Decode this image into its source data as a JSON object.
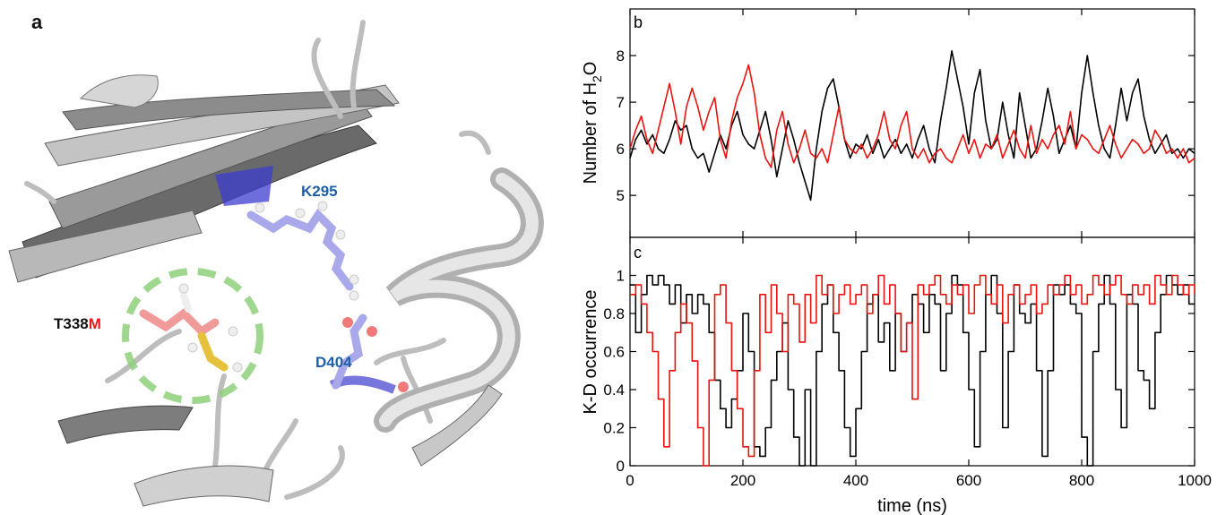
{
  "figure": {
    "panel_a": {
      "label": "a",
      "residues": {
        "k295": "K295",
        "d404": "D404",
        "t338m_prefix": "T338",
        "t338m_suffix": "M"
      },
      "colors": {
        "k295": "#1f5fa8",
        "d404": "#1f5fa8",
        "t338": "#111111",
        "mutant": "#e31a1c",
        "dashed_circle": "#8fd07a",
        "ribbon": "#d9d9d9"
      }
    }
  },
  "chart_data": [
    {
      "id": "b",
      "type": "line",
      "panel_label": "b",
      "ylabel_main": "Number of H",
      "ylabel_sub": "2",
      "ylabel_end": "O",
      "xlabel": "",
      "xlim": [
        0,
        1000
      ],
      "ylim": [
        4.1,
        9.0
      ],
      "yticks": [
        5,
        6,
        7,
        8
      ],
      "xticks": [
        0,
        200,
        400,
        600,
        800,
        1000
      ],
      "grid": false,
      "series": [
        {
          "color": "#000000",
          "x": [
            0,
            10,
            20,
            30,
            40,
            50,
            60,
            70,
            80,
            90,
            100,
            110,
            120,
            130,
            140,
            150,
            160,
            170,
            180,
            190,
            200,
            210,
            220,
            230,
            240,
            250,
            260,
            270,
            280,
            290,
            300,
            310,
            320,
            330,
            340,
            350,
            360,
            370,
            380,
            390,
            400,
            410,
            420,
            430,
            440,
            450,
            460,
            470,
            480,
            490,
            500,
            510,
            520,
            530,
            540,
            550,
            560,
            570,
            580,
            590,
            600,
            610,
            620,
            630,
            640,
            650,
            660,
            670,
            680,
            690,
            700,
            710,
            720,
            730,
            740,
            750,
            760,
            770,
            780,
            790,
            800,
            810,
            820,
            830,
            840,
            850,
            860,
            870,
            880,
            890,
            900,
            910,
            920,
            930,
            940,
            950,
            960,
            970,
            980,
            990,
            1000
          ],
          "y": [
            5.8,
            6.2,
            6.4,
            6.1,
            6.3,
            6.0,
            5.9,
            6.2,
            6.6,
            6.4,
            6.5,
            6.0,
            5.8,
            5.9,
            5.5,
            5.9,
            6.3,
            6.0,
            6.5,
            6.8,
            6.3,
            6.1,
            6.0,
            6.4,
            6.8,
            6.2,
            5.4,
            6.0,
            6.6,
            6.2,
            5.7,
            5.3,
            4.9,
            6.0,
            6.8,
            7.3,
            7.5,
            6.9,
            6.2,
            5.8,
            6.1,
            6.0,
            6.3,
            5.9,
            6.2,
            5.8,
            6.0,
            6.2,
            5.9,
            6.1,
            5.8,
            6.2,
            6.5,
            6.0,
            5.7,
            6.6,
            7.3,
            8.1,
            7.5,
            6.9,
            6.1,
            7.2,
            7.7,
            6.6,
            6.0,
            6.2,
            7.0,
            6.3,
            5.8,
            7.2,
            6.5,
            5.8,
            6.0,
            6.6,
            7.3,
            6.7,
            5.9,
            6.2,
            6.5,
            6.0,
            7.2,
            8.0,
            7.2,
            6.5,
            6.0,
            5.8,
            6.5,
            7.3,
            6.6,
            7.2,
            7.5,
            6.7,
            6.2,
            5.9,
            6.1,
            6.3,
            5.9,
            6.0,
            5.8,
            6.0,
            5.9
          ]
        },
        {
          "color": "#e8130f",
          "x": [
            0,
            10,
            20,
            30,
            40,
            50,
            60,
            70,
            80,
            90,
            100,
            110,
            120,
            130,
            140,
            150,
            160,
            170,
            180,
            190,
            200,
            210,
            220,
            230,
            240,
            250,
            260,
            270,
            280,
            290,
            300,
            310,
            320,
            330,
            340,
            350,
            360,
            370,
            380,
            390,
            400,
            410,
            420,
            430,
            440,
            450,
            460,
            470,
            480,
            490,
            500,
            510,
            520,
            530,
            540,
            550,
            560,
            570,
            580,
            590,
            600,
            610,
            620,
            630,
            640,
            650,
            660,
            670,
            680,
            690,
            700,
            710,
            720,
            730,
            740,
            750,
            760,
            770,
            780,
            790,
            800,
            810,
            820,
            830,
            840,
            850,
            860,
            870,
            880,
            890,
            900,
            910,
            920,
            930,
            940,
            950,
            960,
            970,
            980,
            990,
            1000
          ],
          "y": [
            6.0,
            6.4,
            6.7,
            6.2,
            5.9,
            6.4,
            6.9,
            7.4,
            6.8,
            6.1,
            6.9,
            7.3,
            6.9,
            6.4,
            6.8,
            7.1,
            6.2,
            5.8,
            6.6,
            7.1,
            7.4,
            7.8,
            7.2,
            6.3,
            5.8,
            5.6,
            6.4,
            6.8,
            6.1,
            5.7,
            6.0,
            6.4,
            5.9,
            5.8,
            6.0,
            5.7,
            6.3,
            6.9,
            6.2,
            6.0,
            5.9,
            6.1,
            5.8,
            6.0,
            6.3,
            6.8,
            6.2,
            6.0,
            6.5,
            6.8,
            6.0,
            5.8,
            6.0,
            5.7,
            5.9,
            6.0,
            5.8,
            5.7,
            6.0,
            6.3,
            5.9,
            6.2,
            5.8,
            6.1,
            6.0,
            6.3,
            5.8,
            6.1,
            6.4,
            6.0,
            5.8,
            6.5,
            5.9,
            6.2,
            6.0,
            6.3,
            6.5,
            6.1,
            6.8,
            6.0,
            6.3,
            6.2,
            6.0,
            5.9,
            6.2,
            6.5,
            6.1,
            5.8,
            6.0,
            6.2,
            6.1,
            5.9,
            6.0,
            6.4,
            6.2,
            5.9,
            6.0,
            5.8,
            6.0,
            5.7,
            5.8
          ]
        }
      ]
    },
    {
      "id": "c",
      "type": "line",
      "panel_label": "c",
      "ylabel": "K-D occurrence",
      "xlabel": "time (ns)",
      "xlim": [
        0,
        1000
      ],
      "ylim": [
        0,
        1.2
      ],
      "yticks": [
        0,
        0.2,
        0.4,
        0.6,
        0.8,
        1
      ],
      "xticks": [
        0,
        200,
        400,
        600,
        800,
        1000
      ],
      "grid": false,
      "series": [
        {
          "color": "#000000",
          "x": [
            0,
            10,
            20,
            30,
            40,
            50,
            60,
            70,
            80,
            90,
            100,
            110,
            120,
            130,
            140,
            150,
            160,
            170,
            180,
            190,
            200,
            210,
            220,
            230,
            240,
            250,
            260,
            270,
            280,
            290,
            300,
            310,
            320,
            330,
            340,
            350,
            360,
            370,
            380,
            390,
            400,
            410,
            420,
            430,
            440,
            450,
            460,
            470,
            480,
            490,
            500,
            510,
            520,
            530,
            540,
            550,
            560,
            570,
            580,
            590,
            600,
            610,
            620,
            630,
            640,
            650,
            660,
            670,
            680,
            690,
            700,
            710,
            720,
            730,
            740,
            750,
            760,
            770,
            780,
            790,
            800,
            810,
            820,
            830,
            840,
            850,
            860,
            870,
            880,
            890,
            900,
            910,
            920,
            930,
            940,
            950,
            960,
            970,
            980,
            990,
            1000
          ],
          "y": [
            0.95,
            0.7,
            0.9,
            1.0,
            0.95,
            1.0,
            0.95,
            0.85,
            0.95,
            0.75,
            0.9,
            0.8,
            0.9,
            0.85,
            0.7,
            0.45,
            0.3,
            0.2,
            0.35,
            0.5,
            0.8,
            0.6,
            0.1,
            0.05,
            0.2,
            0.45,
            0.6,
            0.75,
            0.4,
            0.15,
            0.0,
            0.4,
            0.0,
            0.6,
            0.85,
            0.95,
            0.7,
            0.5,
            0.2,
            0.05,
            0.3,
            0.6,
            0.85,
            0.9,
            0.65,
            0.75,
            0.5,
            0.8,
            0.6,
            0.75,
            0.9,
            0.85,
            0.7,
            0.9,
            0.85,
            0.5,
            0.8,
            1.0,
            0.95,
            0.7,
            0.4,
            0.1,
            0.6,
            0.9,
            1.0,
            0.8,
            0.2,
            0.6,
            0.95,
            0.8,
            0.75,
            0.85,
            0.5,
            0.05,
            0.5,
            0.95,
            0.9,
            0.95,
            0.85,
            0.8,
            0.15,
            0.0,
            0.6,
            0.85,
            1.0,
            0.85,
            0.4,
            0.2,
            0.9,
            0.85,
            0.5,
            0.45,
            0.3,
            0.7,
            0.9,
            1.0,
            0.95,
            0.9,
            0.95,
            0.85,
            0.85
          ]
        },
        {
          "color": "#e8130f",
          "x": [
            0,
            10,
            20,
            30,
            40,
            50,
            60,
            70,
            80,
            90,
            100,
            110,
            120,
            130,
            140,
            150,
            160,
            170,
            180,
            190,
            200,
            210,
            220,
            230,
            240,
            250,
            260,
            270,
            280,
            290,
            300,
            310,
            320,
            330,
            340,
            350,
            360,
            370,
            380,
            390,
            400,
            410,
            420,
            430,
            440,
            450,
            460,
            470,
            480,
            490,
            500,
            510,
            520,
            530,
            540,
            550,
            560,
            570,
            580,
            590,
            600,
            610,
            620,
            630,
            640,
            650,
            660,
            670,
            680,
            690,
            700,
            710,
            720,
            730,
            740,
            750,
            760,
            770,
            780,
            790,
            800,
            810,
            820,
            830,
            840,
            850,
            860,
            870,
            880,
            890,
            900,
            910,
            920,
            930,
            940,
            950,
            960,
            970,
            980,
            990,
            1000
          ],
          "y": [
            0.9,
            0.95,
            0.85,
            0.7,
            0.6,
            0.35,
            0.1,
            0.5,
            0.7,
            0.85,
            0.75,
            0.55,
            0.2,
            0.0,
            0.45,
            0.9,
            0.95,
            0.75,
            0.5,
            0.3,
            0.1,
            0.05,
            0.5,
            0.9,
            0.7,
            0.95,
            0.8,
            0.6,
            0.9,
            0.85,
            0.65,
            0.9,
            0.75,
            1.0,
            0.9,
            0.95,
            0.8,
            0.9,
            0.95,
            0.85,
            0.9,
            0.95,
            0.8,
            0.9,
            1.0,
            0.85,
            0.95,
            0.8,
            0.6,
            0.75,
            0.35,
            0.95,
            0.9,
            0.95,
            1.0,
            0.9,
            0.85,
            0.95,
            0.9,
            0.95,
            0.8,
            0.95,
            1.0,
            0.9,
            0.85,
            0.95,
            0.75,
            0.9,
            0.95,
            0.85,
            0.9,
            0.95,
            0.8,
            0.85,
            0.95,
            0.9,
            0.95,
            1.0,
            0.9,
            0.95,
            0.85,
            0.9,
            1.0,
            0.95,
            0.9,
            0.95,
            1.0,
            0.9,
            0.85,
            0.95,
            0.9,
            0.95,
            0.85,
            1.0,
            0.95,
            0.9,
            1.0,
            0.95,
            0.9,
            0.95,
            0.9
          ]
        }
      ]
    }
  ]
}
